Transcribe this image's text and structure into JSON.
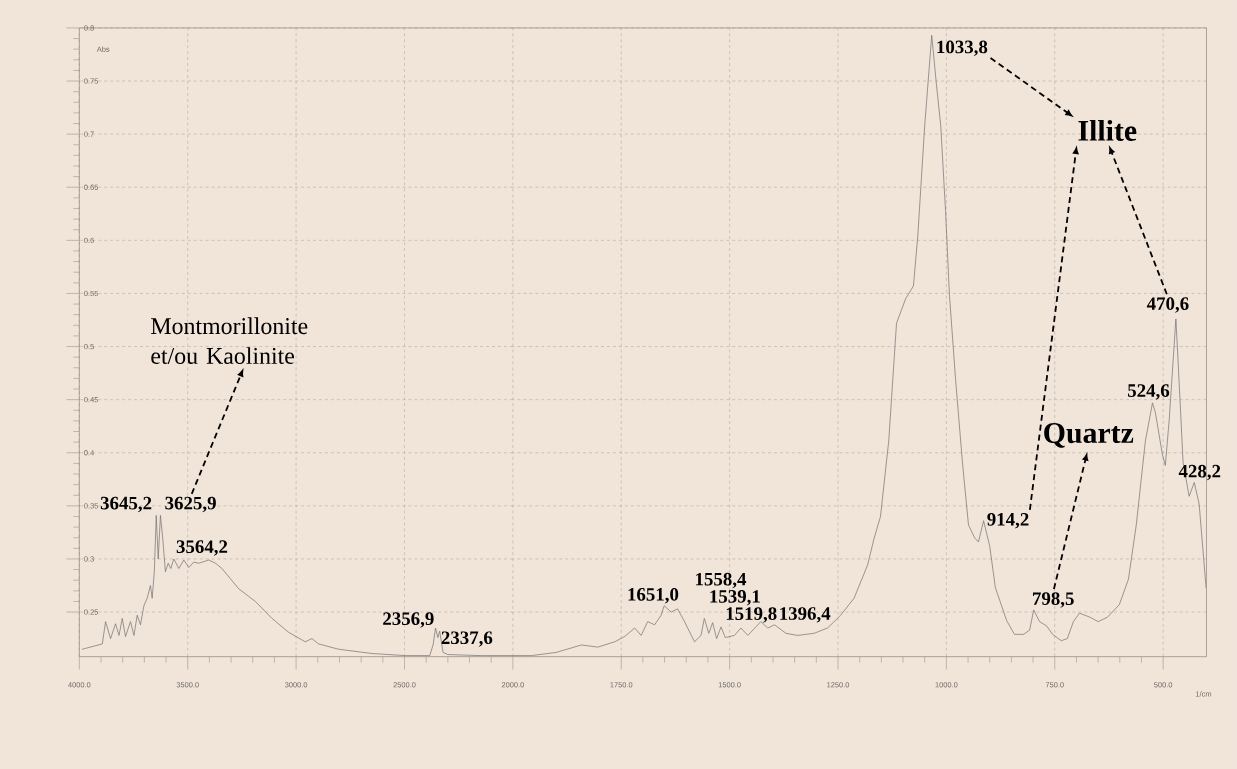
{
  "chart_data": [
    {
      "type": "line",
      "color": "#707070",
      "ylabel": "Abs",
      "x": [
        3986,
        3931,
        3894,
        3879,
        3856,
        3833,
        3817,
        3802,
        3787,
        3764,
        3748,
        3733,
        3718,
        3702,
        3687,
        3672,
        3664,
        3654,
        3645.2,
        3636,
        3625.9,
        3615,
        3603,
        3590,
        3578,
        3564.2,
        3541,
        3518,
        3495,
        3472,
        3449,
        3403,
        3372,
        3342,
        3265,
        3188,
        3111,
        3035,
        2958,
        2927,
        2896,
        2804,
        2651,
        2498,
        2383,
        2367,
        2356.9,
        2346,
        2337.6,
        2322,
        2300,
        2150,
        2000
      ],
      "values": [
        0.215,
        0.218,
        0.22,
        0.241,
        0.225,
        0.239,
        0.228,
        0.244,
        0.227,
        0.241,
        0.228,
        0.247,
        0.238,
        0.256,
        0.263,
        0.275,
        0.263,
        0.288,
        0.341,
        0.3,
        0.341,
        0.319,
        0.288,
        0.296,
        0.291,
        0.3,
        0.291,
        0.299,
        0.292,
        0.297,
        0.296,
        0.299,
        0.296,
        0.291,
        0.272,
        0.26,
        0.244,
        0.231,
        0.222,
        0.225,
        0.22,
        0.215,
        0.211,
        0.209,
        0.209,
        0.22,
        0.235,
        0.226,
        0.232,
        0.212,
        0.21,
        0.209,
        0.209
      ],
      "xlim": [
        4000,
        2000
      ],
      "ylim": [
        0.208,
        0.8
      ],
      "xticks": [
        {
          "value": 4000,
          "label": "4000.0"
        },
        {
          "value": 3500,
          "label": "3500.0"
        },
        {
          "value": 3000,
          "label": "3000.0"
        },
        {
          "value": 2500,
          "label": "2500.0"
        },
        {
          "value": 2000,
          "label": "2000.0"
        }
      ],
      "yticks": [
        0.25,
        0.3,
        0.35,
        0.4,
        0.45,
        0.5,
        0.55,
        0.6,
        0.65,
        0.7,
        0.75,
        0.8
      ],
      "grid": true,
      "annotations": [
        "Montmorillonite et/ou Kaolinite",
        {
          "text": "3645,2",
          "x": 3645.2,
          "y": 0.341
        },
        {
          "text": "3625,9",
          "x": 3625.9,
          "y": 0.341
        },
        {
          "text": "3564,2",
          "x": 3564.2,
          "y": 0.3
        },
        {
          "text": "2356,9",
          "x": 2356.9,
          "y": 0.235
        },
        {
          "text": "2337,6",
          "x": 2337.6,
          "y": 0.232
        }
      ]
    },
    {
      "type": "line",
      "color": "#707070",
      "xlabel": "1/cm",
      "x": [
        2000,
        1957,
        1900,
        1842,
        1804,
        1765,
        1742,
        1719,
        1704,
        1689,
        1673,
        1658,
        1651.0,
        1635,
        1620,
        1604,
        1581,
        1566,
        1558.4,
        1548,
        1539.1,
        1530,
        1519.8,
        1510,
        1489,
        1474,
        1458,
        1428,
        1412,
        1396.4,
        1370,
        1343,
        1305,
        1274,
        1244,
        1213,
        1182,
        1167,
        1152,
        1133,
        1115,
        1094,
        1076,
        1066,
        1050,
        1033.8,
        1023,
        1013,
        1002,
        993,
        979,
        963,
        949,
        935,
        926,
        914.2,
        900,
        887,
        861,
        843,
        822,
        808,
        798.5,
        785,
        769,
        755,
        735,
        721,
        707,
        693,
        668,
        650,
        629,
        601,
        580,
        562,
        541,
        524.6,
        518,
        502,
        495,
        486,
        470.6,
        466,
        454,
        440,
        428.2,
        417,
        401
      ],
      "values": [
        0.209,
        0.209,
        0.212,
        0.219,
        0.217,
        0.222,
        0.227,
        0.235,
        0.228,
        0.241,
        0.238,
        0.247,
        0.256,
        0.25,
        0.253,
        0.241,
        0.222,
        0.228,
        0.244,
        0.23,
        0.24,
        0.225,
        0.236,
        0.226,
        0.228,
        0.235,
        0.228,
        0.241,
        0.235,
        0.238,
        0.23,
        0.228,
        0.23,
        0.235,
        0.247,
        0.263,
        0.294,
        0.319,
        0.34,
        0.411,
        0.522,
        0.545,
        0.557,
        0.604,
        0.708,
        0.793,
        0.747,
        0.708,
        0.628,
        0.549,
        0.47,
        0.391,
        0.332,
        0.32,
        0.316,
        0.336,
        0.312,
        0.273,
        0.242,
        0.229,
        0.229,
        0.233,
        0.252,
        0.241,
        0.237,
        0.229,
        0.223,
        0.225,
        0.241,
        0.249,
        0.245,
        0.241,
        0.245,
        0.257,
        0.281,
        0.332,
        0.411,
        0.447,
        0.438,
        0.399,
        0.388,
        0.431,
        0.526,
        0.49,
        0.391,
        0.359,
        0.372,
        0.352,
        0.273
      ],
      "xlim": [
        2000,
        400
      ],
      "ylim": [
        0.208,
        0.8
      ],
      "xticks": [
        {
          "value": 1750,
          "label": "1750.0"
        },
        {
          "value": 1500,
          "label": "1500.0"
        },
        {
          "value": 1250,
          "label": "1250.0"
        },
        {
          "value": 1000,
          "label": "1000.0"
        },
        {
          "value": 750,
          "label": "750.0"
        },
        {
          "value": 500,
          "label": "500.0"
        }
      ],
      "yticks": [
        0.25,
        0.3,
        0.35,
        0.4,
        0.45,
        0.5,
        0.55,
        0.6,
        0.65,
        0.7,
        0.75,
        0.8
      ],
      "tick_labels": "x",
      "grid": true,
      "annotations": [
        "Illite",
        "Quartz",
        {
          "text": "1651,0",
          "x": 1651.0,
          "y": 0.256
        },
        {
          "text": "1558,4",
          "x": 1558.4,
          "y": 0.244
        },
        {
          "text": "1539,1",
          "x": 1539.1,
          "y": 0.24
        },
        {
          "text": "1519,8",
          "x": 1519.8,
          "y": 0.236
        },
        {
          "text": "1396,4",
          "x": 1396.4,
          "y": 0.238
        },
        {
          "text": "1033,8",
          "x": 1033.8,
          "y": 0.793
        },
        {
          "text": "914,2",
          "x": 914.2,
          "y": 0.336
        },
        {
          "text": "798,5",
          "x": 798.5,
          "y": 0.252
        },
        {
          "text": "524,6",
          "x": 524.6,
          "y": 0.447
        },
        {
          "text": "470,6",
          "x": 470.6,
          "y": 0.526
        },
        {
          "text": "428,2",
          "x": 428.2,
          "y": 0.372
        }
      ]
    }
  ]
}
